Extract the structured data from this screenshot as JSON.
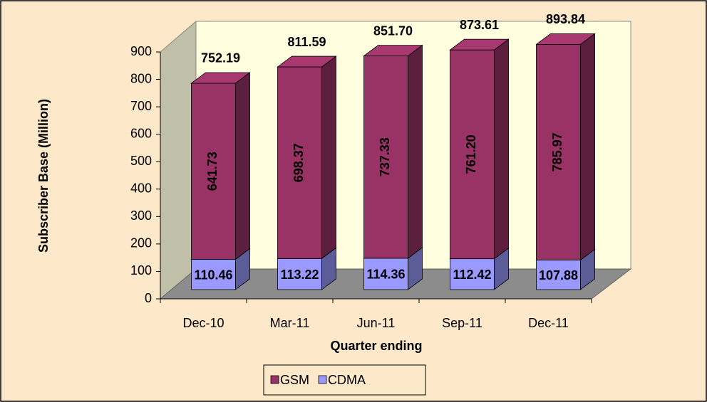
{
  "chart_data": {
    "type": "bar3d_stacked",
    "categories": [
      "Dec-10",
      "Mar-11",
      "Jun-11",
      "Sep-11",
      "Dec-11"
    ],
    "series": [
      {
        "name": "GSM",
        "color": "#993366",
        "values": [
          641.73,
          698.37,
          737.33,
          761.2,
          785.97
        ],
        "value_labels": [
          "641.73",
          "698.37",
          "737.33",
          "761.20",
          "785.97"
        ]
      },
      {
        "name": "CDMA",
        "color": "#9999ff",
        "values": [
          110.46,
          113.22,
          114.36,
          112.42,
          107.88
        ]
      }
    ],
    "totals": [
      752.19,
      811.59,
      851.7,
      873.61,
      893.84
    ],
    "total_labels": [
      "752.19",
      "811.59",
      "851.70",
      "873.61",
      "893.84"
    ],
    "x_label": "Quarter ending",
    "y_label": "Subscriber Base (Million)",
    "ylim": [
      0,
      900
    ],
    "yticks": [
      0,
      100,
      200,
      300,
      400,
      500,
      600,
      700,
      800,
      900
    ],
    "legend": "bottom"
  }
}
